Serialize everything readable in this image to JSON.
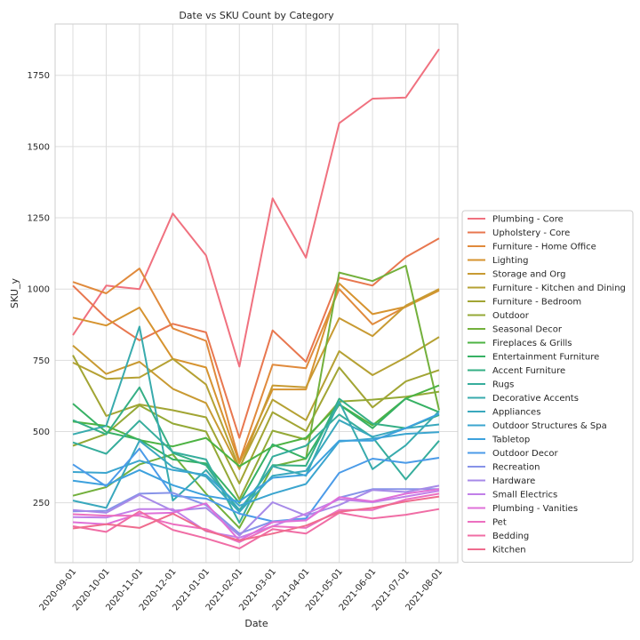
{
  "chart_data": {
    "type": "line",
    "title": "Date vs SKU Count by Category",
    "xlabel": "Date",
    "ylabel": "SKU_y",
    "x": [
      "2020-09-01",
      "2020-10-01",
      "2020-11-01",
      "2020-12-01",
      "2021-01-01",
      "2021-02-01",
      "2021-03-01",
      "2021-04-01",
      "2021-05-01",
      "2021-06-01",
      "2021-07-01",
      "2021-08-01"
    ],
    "ylim": [
      40,
      1930
    ],
    "yticks": [
      "250",
      "500",
      "750",
      "1000",
      "1250",
      "1500",
      "1750"
    ],
    "grid": true,
    "legend": "right",
    "series": [
      {
        "name": "Plumbing - Core",
        "color": "#f0717f",
        "values": [
          838,
          1012,
          1000,
          1265,
          1118,
          728,
          1318,
          1110,
          1582,
          1668,
          1672,
          1842
        ]
      },
      {
        "name": "Upholstery - Core",
        "color": "#e8774f",
        "values": [
          1012,
          898,
          820,
          878,
          848,
          478,
          855,
          745,
          1040,
          1012,
          1112,
          1178
        ]
      },
      {
        "name": "Furniture - Home Office",
        "color": "#e08a3c",
        "values": [
          1025,
          985,
          1072,
          862,
          818,
          395,
          735,
          722,
          1000,
          876,
          938,
          1000
        ]
      },
      {
        "name": "Lighting",
        "color": "#d6932f",
        "values": [
          900,
          872,
          935,
          755,
          725,
          390,
          648,
          648,
          1020,
          912,
          938,
          995
        ]
      },
      {
        "name": "Storage and Org",
        "color": "#c89a32",
        "values": [
          802,
          702,
          745,
          650,
          600,
          368,
          662,
          655,
          898,
          835,
          942,
          1000
        ]
      },
      {
        "name": "Furniture - Kitchen and Dining",
        "color": "#b5a133",
        "values": [
          742,
          685,
          690,
          755,
          665,
          372,
          612,
          540,
          782,
          698,
          760,
          832
        ]
      },
      {
        "name": "Furniture - Bedroom",
        "color": "#a2a534",
        "values": [
          768,
          555,
          595,
          575,
          550,
          318,
          568,
          502,
          725,
          585,
          676,
          716
        ]
      },
      {
        "name": "Outdoor",
        "color": "#94a936",
        "values": [
          450,
          492,
          592,
          528,
          500,
          262,
          503,
          472,
          605,
          612,
          622,
          640
        ]
      },
      {
        "name": "Seasonal Decor",
        "color": "#73b03c",
        "values": [
          275,
          305,
          385,
          420,
          282,
          162,
          378,
          405,
          1058,
          1028,
          1082,
          575
        ]
      },
      {
        "name": "Fireplaces & Grills",
        "color": "#4db343",
        "values": [
          535,
          520,
          470,
          448,
          478,
          378,
          448,
          478,
          595,
          522,
          616,
          662
        ]
      },
      {
        "name": "Entertainment Furniture",
        "color": "#37b164",
        "values": [
          598,
          498,
          472,
          402,
          388,
          250,
          455,
          405,
          595,
          512,
          616,
          568
        ]
      },
      {
        "name": "Accent Furniture",
        "color": "#35af85",
        "values": [
          540,
          490,
          655,
          425,
          382,
          218,
          382,
          380,
          615,
          528,
          512,
          558
        ]
      },
      {
        "name": "Rugs",
        "color": "#36ad9c",
        "values": [
          462,
          422,
          538,
          428,
          402,
          180,
          412,
          450,
          560,
          480,
          332,
          468
        ]
      },
      {
        "name": "Decorative Accents",
        "color": "#38abad",
        "values": [
          490,
          520,
          868,
          258,
          365,
          225,
          378,
          345,
          605,
          368,
          452,
          572
        ]
      },
      {
        "name": "Appliances",
        "color": "#39a8bd",
        "values": [
          258,
          232,
          468,
          375,
          342,
          218,
          345,
          362,
          540,
          482,
          512,
          525
        ]
      },
      {
        "name": "Outdoor Structures & Spa",
        "color": "#3ba5cf",
        "values": [
          358,
          355,
          398,
          365,
          348,
          240,
          282,
          316,
          465,
          475,
          492,
          498
        ]
      },
      {
        "name": "Tabletop",
        "color": "#3da1dd",
        "values": [
          328,
          312,
          365,
          312,
          275,
          255,
          338,
          348,
          468,
          468,
          512,
          562
        ]
      },
      {
        "name": "Outdoor Decor",
        "color": "#4b9be8",
        "values": [
          385,
          308,
          440,
          275,
          265,
          212,
          185,
          195,
          355,
          405,
          390,
          408
        ]
      },
      {
        "name": "Recreation",
        "color": "#8793e8",
        "values": [
          220,
          222,
          282,
          285,
          242,
          142,
          185,
          190,
          268,
          298,
          298,
          298
        ]
      },
      {
        "name": "Hardware",
        "color": "#a78ae8",
        "values": [
          225,
          215,
          278,
          222,
          232,
          135,
          252,
          205,
          242,
          295,
          288,
          310
        ]
      },
      {
        "name": "Small Electrics",
        "color": "#c17fe8",
        "values": [
          200,
          198,
          228,
          228,
          150,
          128,
          168,
          212,
          262,
          252,
          272,
          292
        ]
      },
      {
        "name": "Plumbing - Vanities",
        "color": "#df70d8",
        "values": [
          182,
          175,
          212,
          215,
          248,
          118,
          182,
          188,
          270,
          255,
          282,
          298
        ]
      },
      {
        "name": "Pet",
        "color": "#ec6fc0",
        "values": [
          210,
          205,
          205,
          175,
          158,
          112,
          168,
          162,
          225,
          225,
          262,
          282
        ]
      },
      {
        "name": "Bedding",
        "color": "#f06da5",
        "values": [
          168,
          148,
          220,
          155,
          125,
          90,
          158,
          142,
          215,
          195,
          208,
          228
        ]
      },
      {
        "name": "Kitchen",
        "color": "#ef6c8e",
        "values": [
          160,
          175,
          162,
          212,
          152,
          118,
          142,
          170,
          218,
          232,
          255,
          272
        ]
      }
    ]
  }
}
